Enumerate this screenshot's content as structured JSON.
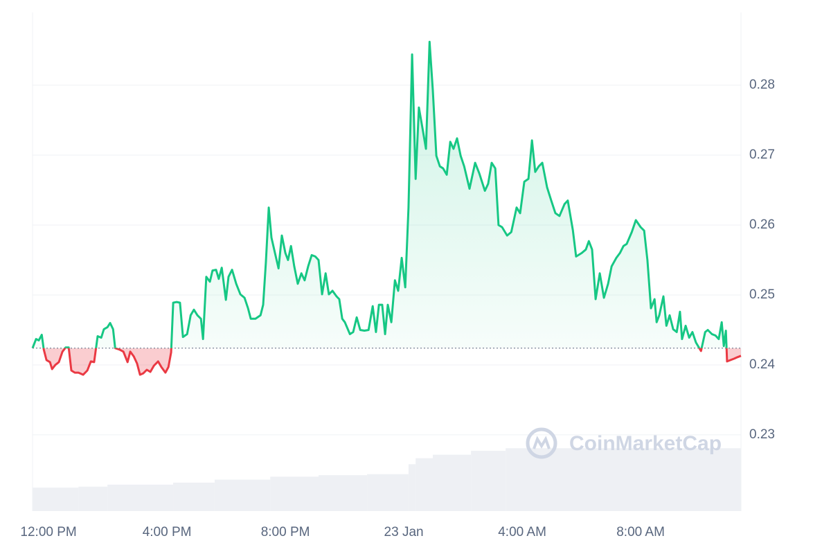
{
  "chart_data": {
    "type": "line",
    "baseline": 0.2424,
    "color_up": "#16c784",
    "color_down": "#ea3943",
    "volume_color": "#eef0f4",
    "watermark": "CoinMarketCap",
    "xlim": [
      -0.54,
      23.39
    ],
    "ylim": [
      0.2191,
      0.2904
    ],
    "xticks": [
      {
        "value": 0,
        "label": "12:00 PM"
      },
      {
        "value": 4,
        "label": "4:00 PM"
      },
      {
        "value": 8,
        "label": "8:00 PM"
      },
      {
        "value": 12,
        "label": "23 Jan"
      },
      {
        "value": 16,
        "label": "4:00 AM"
      },
      {
        "value": 20,
        "label": "8:00 AM"
      }
    ],
    "yticks": [
      0.23,
      0.24,
      0.25,
      0.26,
      0.27,
      0.28
    ],
    "grid": true,
    "x": [
      -0.54,
      -0.42,
      -0.33,
      -0.23,
      -0.16,
      -0.07,
      0.05,
      0.12,
      0.23,
      0.35,
      0.47,
      0.58,
      0.68,
      0.77,
      0.89,
      1.01,
      1.17,
      1.31,
      1.43,
      1.54,
      1.66,
      1.78,
      1.87,
      1.99,
      2.08,
      2.18,
      2.25,
      2.39,
      2.53,
      2.67,
      2.76,
      2.88,
      2.99,
      3.09,
      3.2,
      3.32,
      3.44,
      3.56,
      3.7,
      3.81,
      3.95,
      4.05,
      4.14,
      4.21,
      4.33,
      4.44,
      4.54,
      4.68,
      4.8,
      4.91,
      5.03,
      5.15,
      5.22,
      5.33,
      5.45,
      5.54,
      5.66,
      5.75,
      5.85,
      5.99,
      6.08,
      6.2,
      6.34,
      6.48,
      6.62,
      6.74,
      6.83,
      6.99,
      7.16,
      7.25,
      7.34,
      7.44,
      7.53,
      7.65,
      7.77,
      7.88,
      8.0,
      8.09,
      8.19,
      8.3,
      8.42,
      8.54,
      8.65,
      8.77,
      8.89,
      9.01,
      9.12,
      9.24,
      9.36,
      9.47,
      9.59,
      9.73,
      9.82,
      9.92,
      10.01,
      10.18,
      10.29,
      10.41,
      10.53,
      10.67,
      10.81,
      10.95,
      11.06,
      11.16,
      11.27,
      11.37,
      11.46,
      11.58,
      11.7,
      11.81,
      11.93,
      12.05,
      12.16,
      12.28,
      12.4,
      12.51,
      12.63,
      12.75,
      12.87,
      12.98,
      13.1,
      13.22,
      13.33,
      13.45,
      13.57,
      13.68,
      13.8,
      13.92,
      14.04,
      14.22,
      14.41,
      14.55,
      14.74,
      14.85,
      14.97,
      15.09,
      15.2,
      15.32,
      15.49,
      15.63,
      15.81,
      15.93,
      16.07,
      16.21,
      16.33,
      16.44,
      16.56,
      16.68,
      16.84,
      16.98,
      17.12,
      17.26,
      17.43,
      17.54,
      17.71,
      17.82,
      18.01,
      18.15,
      18.25,
      18.36,
      18.48,
      18.62,
      18.76,
      18.9,
      19.02,
      19.18,
      19.3,
      19.42,
      19.53,
      19.7,
      19.84,
      20.0,
      20.12,
      20.23,
      20.35,
      20.47,
      20.54,
      20.63,
      20.77,
      20.87,
      20.98,
      21.1,
      21.22,
      21.33,
      21.4,
      21.52,
      21.64,
      21.75,
      21.87,
      22.04,
      22.18,
      22.27,
      22.41,
      22.53,
      22.64,
      22.74,
      22.81,
      22.88,
      22.92,
      23.04,
      23.16,
      23.27,
      23.39
    ],
    "values": [
      0.2424,
      0.2437,
      0.2435,
      0.2443,
      0.2422,
      0.2407,
      0.2404,
      0.2394,
      0.24,
      0.2404,
      0.2419,
      0.2425,
      0.2425,
      0.2392,
      0.2389,
      0.2389,
      0.2386,
      0.2392,
      0.2405,
      0.2404,
      0.2441,
      0.2439,
      0.2451,
      0.2454,
      0.246,
      0.2451,
      0.2424,
      0.2422,
      0.2419,
      0.2404,
      0.2419,
      0.2412,
      0.2402,
      0.2386,
      0.2388,
      0.2393,
      0.239,
      0.2399,
      0.2405,
      0.2397,
      0.2389,
      0.2397,
      0.2418,
      0.2489,
      0.249,
      0.2489,
      0.244,
      0.2444,
      0.2471,
      0.2479,
      0.2471,
      0.2466,
      0.2437,
      0.2526,
      0.2519,
      0.2535,
      0.2536,
      0.2523,
      0.2539,
      0.2493,
      0.2526,
      0.2536,
      0.2516,
      0.2501,
      0.2496,
      0.2481,
      0.2466,
      0.2466,
      0.2471,
      0.2486,
      0.2546,
      0.2625,
      0.2582,
      0.256,
      0.2538,
      0.2585,
      0.256,
      0.255,
      0.257,
      0.2541,
      0.2516,
      0.2531,
      0.2521,
      0.2541,
      0.2557,
      0.2555,
      0.255,
      0.2501,
      0.2531,
      0.2501,
      0.2506,
      0.2498,
      0.2494,
      0.2466,
      0.2461,
      0.2444,
      0.2447,
      0.2468,
      0.245,
      0.2449,
      0.245,
      0.2484,
      0.2447,
      0.2486,
      0.2486,
      0.2444,
      0.2486,
      0.2461,
      0.2521,
      0.2506,
      0.2553,
      0.2511,
      0.2625,
      0.2844,
      0.2666,
      0.2768,
      0.2739,
      0.2709,
      0.2862,
      0.2793,
      0.2699,
      0.2684,
      0.2681,
      0.2672,
      0.2719,
      0.2709,
      0.2724,
      0.2699,
      0.2684,
      0.2652,
      0.2689,
      0.2674,
      0.2649,
      0.2659,
      0.2689,
      0.2681,
      0.26,
      0.2597,
      0.2585,
      0.259,
      0.2625,
      0.2617,
      0.2662,
      0.2666,
      0.2721,
      0.2676,
      0.2684,
      0.2689,
      0.2654,
      0.2635,
      0.2617,
      0.2613,
      0.263,
      0.2635,
      0.2593,
      0.2555,
      0.256,
      0.2565,
      0.2577,
      0.2565,
      0.2494,
      0.2531,
      0.2496,
      0.2516,
      0.2541,
      0.2553,
      0.256,
      0.257,
      0.2573,
      0.259,
      0.2607,
      0.2597,
      0.2592,
      0.255,
      0.2481,
      0.2494,
      0.2461,
      0.2471,
      0.2498,
      0.2456,
      0.2471,
      0.2451,
      0.2447,
      0.2476,
      0.2437,
      0.2456,
      0.2439,
      0.2447,
      0.2432,
      0.242,
      0.2447,
      0.245,
      0.2444,
      0.2442,
      0.2437,
      0.2461,
      0.2427,
      0.2449,
      0.2405,
      0.2407,
      0.2409,
      0.2411,
      0.2413
    ],
    "volume": {
      "ylim": [
        0,
        100
      ],
      "x": [
        -0.54,
        1.01,
        1.99,
        4.21,
        5.61,
        7.49,
        9.12,
        10.76,
        12.16,
        12.4,
        12.98,
        14.27,
        15.44
      ],
      "values": [
        4.7,
        4.9,
        5.3,
        5.7,
        6.3,
        6.9,
        7.2,
        7.4,
        9.4,
        10.6,
        11.3,
        12.1,
        12.6
      ]
    }
  }
}
